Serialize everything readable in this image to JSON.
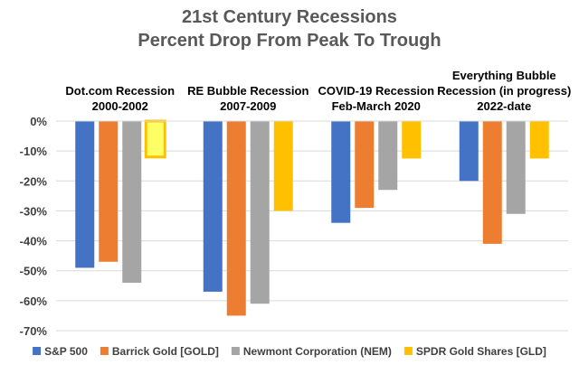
{
  "chart_data": {
    "type": "bar",
    "title_lines": [
      "21st Century Recessions",
      "Percent Drop From Peak To Trough"
    ],
    "groups": [
      {
        "label_lines": [
          "Dot.com Recession",
          "2000-2002"
        ]
      },
      {
        "label_lines": [
          "RE Bubble Recession",
          "2007-2009"
        ]
      },
      {
        "label_lines": [
          "COVID-19 Recession",
          "Feb-March 2020"
        ]
      },
      {
        "label_lines": [
          "Everything Bubble",
          "Recession (in progress)",
          "2022-date"
        ]
      }
    ],
    "series": [
      {
        "name": "S&P 500",
        "color": "#4472C4",
        "values": [
          -49,
          -57,
          -34,
          -20
        ]
      },
      {
        "name": "Barrick Gold [GOLD]",
        "color": "#ED7D31",
        "values": [
          -47,
          -65,
          -29,
          -41
        ]
      },
      {
        "name": "Newmont Corporation (NEM)",
        "color": "#A5A5A5",
        "values": [
          -54,
          -61,
          -23,
          -31
        ]
      },
      {
        "name": "SPDR Gold Shares [GLD]",
        "color": "#FFC000",
        "values": [
          -12,
          -30,
          -12.5,
          -12.5
        ]
      }
    ],
    "y_ticks": [
      "0%",
      "-10%",
      "-20%",
      "-30%",
      "-40%",
      "-50%",
      "-60%",
      "-70%"
    ],
    "ylim": [
      -70,
      0
    ],
    "grid": true,
    "legend_position": "bottom",
    "highlighted_bar_color": "#FFFF66"
  }
}
